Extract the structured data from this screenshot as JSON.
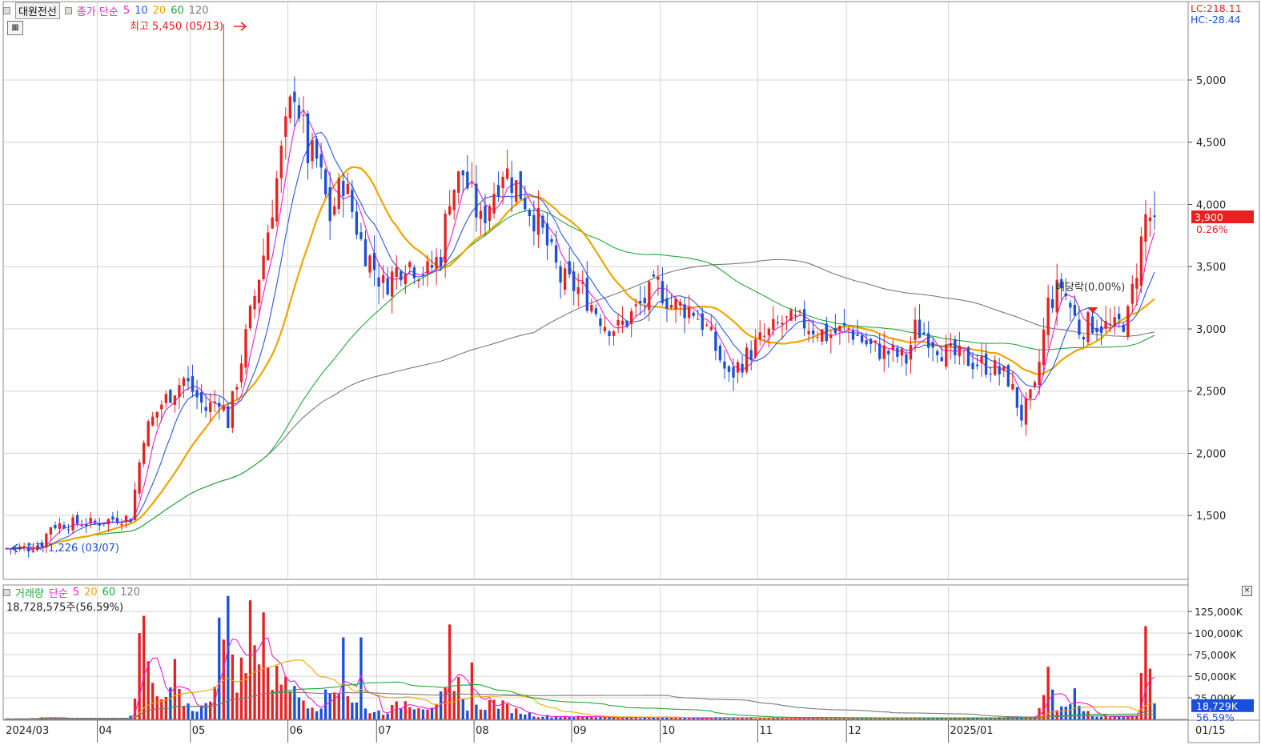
{
  "legend": {
    "stock_name": "대원전선",
    "ma_label": "종가 단순",
    "ma_periods": [
      "5",
      "10",
      "20",
      "60",
      "120"
    ],
    "ma_colors": [
      "#e81fd8",
      "#2a57e8",
      "#f0a500",
      "#1fa83a",
      "#7a7a7a"
    ]
  },
  "volume_legend": {
    "label": "거래량",
    "ma_label": "단순",
    "ma_periods": [
      "5",
      "20",
      "60",
      "120"
    ],
    "current_volume": "18,728,575주(56.59%)"
  },
  "annotations": {
    "high": "최고 5,450 (05/13)",
    "low": "최저 1,226 (03/07)",
    "dividend": "배당락(0.00%)",
    "lc": "LC:218.11",
    "hc": "HC:-28.44"
  },
  "price_axis": {
    "ticks": [
      "5,000",
      "4,500",
      "4,000",
      "3,500",
      "3,000",
      "2,500",
      "2,000",
      "1,500"
    ],
    "tick_values": [
      5000,
      4500,
      4000,
      3500,
      3000,
      2500,
      2000,
      1500
    ],
    "current_price": "3,900",
    "current_change": "0.26%"
  },
  "volume_axis": {
    "ticks": [
      "125,000K",
      "100,000K",
      "75,000K",
      "50,000K",
      "25,000K"
    ],
    "tick_values": [
      125000,
      100000,
      75000,
      50000,
      25000
    ],
    "current_volume": "18,729K",
    "current_ratio": "56.59%"
  },
  "x_axis": {
    "labels": [
      "2024/03",
      "04",
      "05",
      "06",
      "07",
      "08",
      "09",
      "10",
      "11",
      "12",
      "2025/01",
      "01/15"
    ]
  },
  "colors": {
    "up": "#e82020",
    "down": "#1a4fd8",
    "grid": "#d4d4d4",
    "border": "#888888"
  },
  "chart_data": {
    "type": "candlestick",
    "anchors": [
      [
        0,
        1235
      ],
      [
        5,
        1240
      ],
      [
        8,
        1280
      ],
      [
        10,
        1420
      ],
      [
        15,
        1440
      ],
      [
        20,
        1440
      ],
      [
        25,
        1480
      ],
      [
        28,
        1480
      ],
      [
        31,
        2150
      ],
      [
        35,
        2400
      ],
      [
        40,
        2600
      ],
      [
        45,
        2350
      ],
      [
        48,
        2450
      ],
      [
        50,
        2250
      ],
      [
        55,
        3100
      ],
      [
        58,
        3600
      ],
      [
        62,
        4400
      ],
      [
        65,
        4950
      ],
      [
        68,
        4400
      ],
      [
        70,
        4350
      ],
      [
        73,
        3900
      ],
      [
        76,
        4200
      ],
      [
        80,
        3700
      ],
      [
        85,
        3350
      ],
      [
        90,
        3550
      ],
      [
        95,
        3450
      ],
      [
        98,
        3600
      ],
      [
        100,
        4100
      ],
      [
        103,
        4250
      ],
      [
        107,
        3850
      ],
      [
        112,
        4300
      ],
      [
        116,
        4100
      ],
      [
        120,
        3850
      ],
      [
        125,
        3400
      ],
      [
        130,
        3300
      ],
      [
        135,
        3050
      ],
      [
        138,
        3000
      ],
      [
        142,
        3150
      ],
      [
        147,
        3350
      ],
      [
        150,
        3200
      ],
      [
        155,
        3150
      ],
      [
        158,
        3000
      ],
      [
        163,
        2600
      ],
      [
        165,
        2700
      ],
      [
        170,
        2900
      ],
      [
        175,
        3050
      ],
      [
        180,
        3050
      ],
      [
        185,
        2950
      ],
      [
        190,
        3000
      ],
      [
        195,
        2850
      ],
      [
        200,
        2800
      ],
      [
        203,
        2750
      ],
      [
        205,
        3000
      ],
      [
        208,
        2950
      ],
      [
        212,
        2800
      ],
      [
        217,
        2750
      ],
      [
        222,
        2700
      ],
      [
        226,
        2600
      ],
      [
        229,
        2300
      ],
      [
        232,
        2500
      ],
      [
        235,
        3200
      ],
      [
        238,
        3350
      ],
      [
        242,
        3000
      ],
      [
        245,
        3050
      ],
      [
        250,
        3000
      ],
      [
        253,
        3100
      ],
      [
        255,
        3500
      ],
      [
        257,
        3900
      ],
      [
        259,
        3900
      ]
    ],
    "volume_anchors": [
      [
        0,
        500
      ],
      [
        5,
        600
      ],
      [
        8,
        2500
      ],
      [
        10,
        1500
      ],
      [
        25,
        800
      ],
      [
        28,
        3000
      ],
      [
        30,
        40000
      ],
      [
        32,
        60000
      ],
      [
        34,
        20000
      ],
      [
        38,
        30000
      ],
      [
        42,
        12000
      ],
      [
        45,
        15000
      ],
      [
        48,
        60000
      ],
      [
        50,
        110000
      ],
      [
        52,
        50000
      ],
      [
        55,
        70000
      ],
      [
        57,
        90000
      ],
      [
        60,
        40000
      ],
      [
        63,
        60000
      ],
      [
        65,
        30000
      ],
      [
        70,
        15000
      ],
      [
        75,
        40000
      ],
      [
        80,
        12000
      ],
      [
        85,
        8000
      ],
      [
        90,
        20000
      ],
      [
        95,
        15000
      ],
      [
        100,
        30000
      ],
      [
        102,
        25000
      ],
      [
        105,
        12000
      ],
      [
        110,
        20000
      ],
      [
        115,
        10000
      ],
      [
        120,
        4000
      ],
      [
        130,
        3000
      ],
      [
        140,
        2500
      ],
      [
        160,
        2000
      ],
      [
        200,
        1500
      ],
      [
        225,
        2000
      ],
      [
        232,
        3000
      ],
      [
        235,
        50000
      ],
      [
        237,
        15000
      ],
      [
        240,
        20000
      ],
      [
        242,
        15000
      ],
      [
        245,
        3000
      ],
      [
        250,
        3000
      ],
      [
        255,
        5000
      ],
      [
        257,
        100000
      ],
      [
        259,
        18729
      ]
    ],
    "volume_spikes": [
      [
        30,
        100000
      ],
      [
        31,
        120000
      ],
      [
        38,
        70000
      ],
      [
        48,
        118000
      ],
      [
        50,
        143000
      ],
      [
        55,
        138000
      ],
      [
        58,
        124000
      ],
      [
        76,
        95000
      ],
      [
        80,
        95000
      ],
      [
        100,
        110000
      ],
      [
        102,
        49000
      ],
      [
        105,
        66000
      ],
      [
        235,
        61000
      ],
      [
        241,
        36000
      ],
      [
        257,
        108000
      ]
    ],
    "high": 5450,
    "high_date": "05/13",
    "low": 1226,
    "low_date": "03/07",
    "last_close": 3900,
    "ma_periods": [
      5,
      10,
      20,
      60,
      120
    ],
    "price_range": [
      1000,
      5450
    ],
    "volume_range": [
      0,
      140000
    ]
  }
}
